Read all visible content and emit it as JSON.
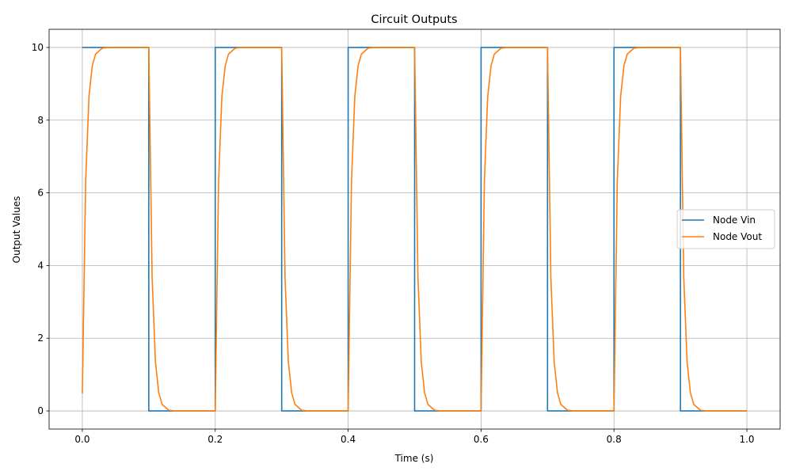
{
  "chart_data": {
    "type": "line",
    "title": "Circuit Outputs",
    "xlabel": "Time (s)",
    "ylabel": "Output Values",
    "xlim": [
      -0.05,
      1.05
    ],
    "ylim": [
      -0.5,
      10.5
    ],
    "xticks": [
      0.0,
      0.2,
      0.4,
      0.6,
      0.8,
      1.0
    ],
    "xtick_labels": [
      "0.0",
      "0.2",
      "0.4",
      "0.6",
      "0.8",
      "1.0"
    ],
    "yticks": [
      0,
      2,
      4,
      6,
      8,
      10
    ],
    "ytick_labels": [
      "0",
      "2",
      "4",
      "6",
      "8",
      "10"
    ],
    "grid": true,
    "legend_position": "center-right",
    "series": [
      {
        "name": "Node Vin",
        "color": "#1f77b4",
        "x": [
          0.0,
          0.1,
          0.1,
          0.2,
          0.2,
          0.3,
          0.3,
          0.4,
          0.4,
          0.5,
          0.5,
          0.6,
          0.6,
          0.7,
          0.7,
          0.8,
          0.8,
          0.9,
          0.9,
          1.0
        ],
        "y": [
          10,
          10,
          0,
          0,
          10,
          10,
          0,
          0,
          10,
          10,
          0,
          0,
          10,
          10,
          0,
          0,
          10,
          10,
          0,
          0
        ]
      },
      {
        "name": "Node Vout",
        "color": "#ff7f0e",
        "x": [
          0.0,
          0.005,
          0.01,
          0.015,
          0.02,
          0.03,
          0.04,
          0.05,
          0.06,
          0.07,
          0.08,
          0.1,
          0.105,
          0.11,
          0.115,
          0.12,
          0.13,
          0.14,
          0.15,
          0.16,
          0.17,
          0.18,
          0.2,
          0.205,
          0.21,
          0.215,
          0.22,
          0.23,
          0.24,
          0.25,
          0.26,
          0.27,
          0.28,
          0.3,
          0.305,
          0.31,
          0.315,
          0.32,
          0.33,
          0.34,
          0.35,
          0.36,
          0.37,
          0.38,
          0.4,
          0.405,
          0.41,
          0.415,
          0.42,
          0.43,
          0.44,
          0.45,
          0.46,
          0.47,
          0.48,
          0.5,
          0.505,
          0.51,
          0.515,
          0.52,
          0.53,
          0.54,
          0.55,
          0.56,
          0.57,
          0.58,
          0.6,
          0.605,
          0.61,
          0.615,
          0.62,
          0.63,
          0.64,
          0.65,
          0.66,
          0.67,
          0.68,
          0.7,
          0.705,
          0.71,
          0.715,
          0.72,
          0.73,
          0.74,
          0.75,
          0.76,
          0.77,
          0.78,
          0.8,
          0.805,
          0.81,
          0.815,
          0.82,
          0.83,
          0.84,
          0.85,
          0.86,
          0.87,
          0.88,
          0.9,
          0.905,
          0.91,
          0.915,
          0.92,
          0.93,
          0.94,
          0.95,
          0.96,
          0.97,
          0.98,
          1.0
        ],
        "y": [
          0.48,
          6.32,
          8.65,
          9.5,
          9.82,
          9.98,
          10.0,
          10.0,
          10.0,
          10.0,
          10.0,
          10.0,
          3.68,
          1.35,
          0.5,
          0.18,
          0.02,
          0.0,
          0.0,
          0.0,
          0.0,
          0.0,
          0.0,
          6.32,
          8.65,
          9.5,
          9.82,
          9.98,
          10.0,
          10.0,
          10.0,
          10.0,
          10.0,
          10.0,
          3.68,
          1.35,
          0.5,
          0.18,
          0.02,
          0.0,
          0.0,
          0.0,
          0.0,
          0.0,
          0.0,
          6.32,
          8.65,
          9.5,
          9.82,
          9.98,
          10.0,
          10.0,
          10.0,
          10.0,
          10.0,
          10.0,
          3.68,
          1.35,
          0.5,
          0.18,
          0.02,
          0.0,
          0.0,
          0.0,
          0.0,
          0.0,
          0.0,
          6.32,
          8.65,
          9.5,
          9.82,
          9.98,
          10.0,
          10.0,
          10.0,
          10.0,
          10.0,
          10.0,
          3.68,
          1.35,
          0.5,
          0.18,
          0.02,
          0.0,
          0.0,
          0.0,
          0.0,
          0.0,
          0.0,
          6.32,
          8.65,
          9.5,
          9.82,
          9.98,
          10.0,
          10.0,
          10.0,
          10.0,
          10.0,
          10.0,
          3.68,
          1.35,
          0.5,
          0.18,
          0.02,
          0.0,
          0.0,
          0.0,
          0.0,
          0.0,
          0.0
        ]
      }
    ]
  }
}
